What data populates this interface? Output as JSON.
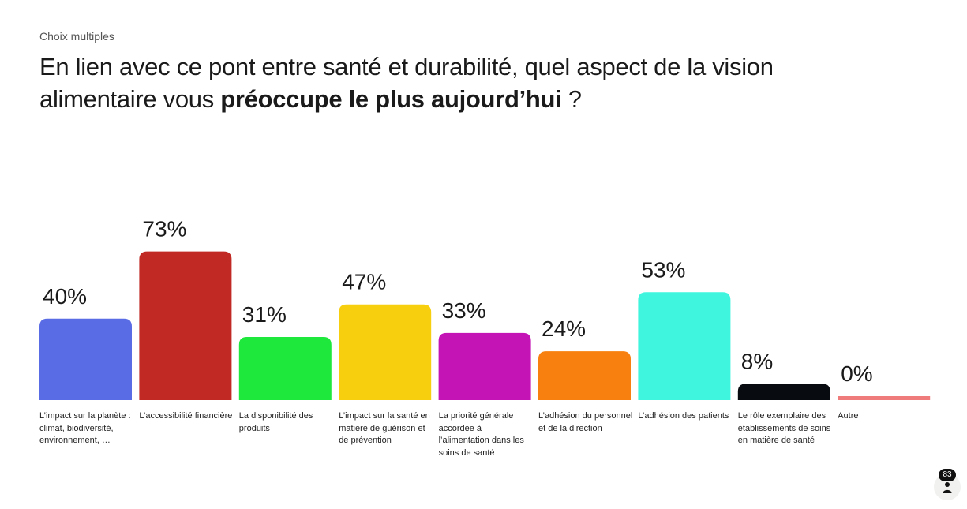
{
  "header": {
    "subtitle": "Choix multiples",
    "question_part1": "En lien avec ce pont entre santé et durabilité, quel aspect de la vision alimentaire vous ",
    "question_bold": "préoccupe le plus aujourd’hui",
    "question_part2": " ?"
  },
  "chart_data": {
    "type": "bar",
    "title": "En lien avec ce pont entre santé et durabilité, quel aspect de la vision alimentaire vous préoccupe le plus aujourd’hui ?",
    "ylim": [
      0,
      100
    ],
    "unit": "%",
    "categories": [
      "L’impact sur la planète : climat, biodiversité, environnement, …",
      "L’accessibilité financière",
      "La disponibilité des produits",
      "L’impact sur la santé en matière de guérison et de prévention",
      "La priorité générale accordée à l’alimentation dans les soins de santé",
      "L’adhésion du personnel et de la direction",
      "L’adhésion des patients",
      "Le rôle exemplaire des établissements de soins en matière de santé",
      "Autre"
    ],
    "values": [
      40,
      73,
      31,
      47,
      33,
      24,
      53,
      8,
      0
    ],
    "value_labels": [
      "40%",
      "73%",
      "31%",
      "47%",
      "33%",
      "24%",
      "53%",
      "8%",
      "0%"
    ],
    "colors": [
      "#5a6be6",
      "#c12a24",
      "#1ee83c",
      "#f7cf0f",
      "#c514b5",
      "#f8800e",
      "#3ff5de",
      "#080b10",
      "#ef7b7b"
    ]
  },
  "responses": {
    "count": "83",
    "icon": "person-icon"
  }
}
